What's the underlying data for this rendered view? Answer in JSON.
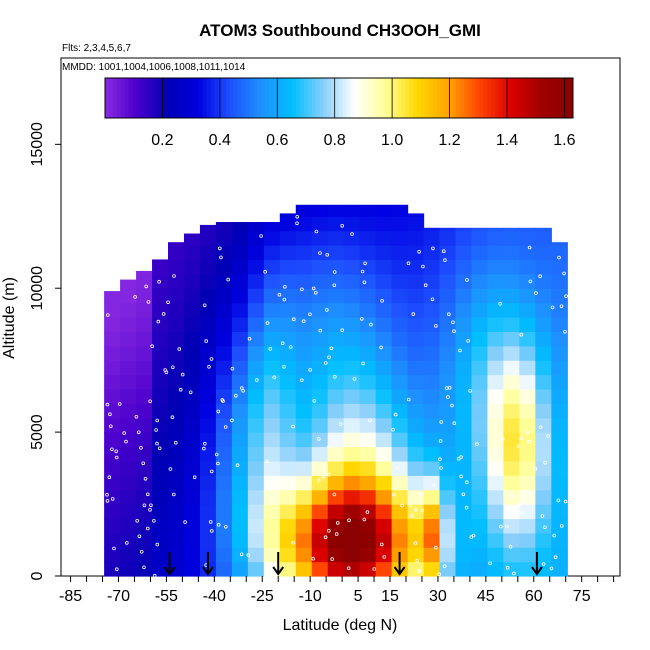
{
  "chart_data": {
    "type": "heatmap",
    "title": "ATOM3 Southbound CH3OOH_GMI",
    "flights_note": "Flts: 2,3,4,5,6,7",
    "dates_note": "MMDD: 1001,1004,1006,1008,1011,1014",
    "xlabel": "Latitude (deg N)",
    "ylabel": "Altitude (m)",
    "xlim": [
      -88,
      87
    ],
    "ylim": [
      0,
      18000
    ],
    "x_ticks": [
      -85,
      -70,
      -55,
      -40,
      -25,
      -10,
      5,
      15,
      30,
      45,
      60,
      75
    ],
    "x_tick_labels": [
      "-85",
      "-70",
      "-55",
      "-40",
      "-25",
      "-10",
      "5",
      "15",
      "30",
      "45",
      "60",
      "75"
    ],
    "y_ticks": [
      0,
      5000,
      10000,
      15000
    ],
    "y_tick_labels": [
      "0",
      "5000",
      "10000",
      "15000"
    ],
    "colorbar": {
      "min": 0.0,
      "max": 1.63,
      "ticks": [
        0.2,
        0.4,
        0.6,
        0.8,
        1.0,
        1.2,
        1.4,
        1.6
      ],
      "tick_labels": [
        "0.2",
        "0.4",
        "0.6",
        "0.8",
        "1.0",
        "1.2",
        "1.4",
        "1.6"
      ],
      "colors": [
        "#8a2be2",
        "#4b00cc",
        "#0000b4",
        "#0000e0",
        "#1e50ff",
        "#1e90ff",
        "#00bfff",
        "#87cefa",
        "#ffffff",
        "#ffff99",
        "#ffd700",
        "#ffa500",
        "#ff4500",
        "#dc0000",
        "#a00000",
        "#8b0000"
      ]
    },
    "profile_latitudes": [
      -72,
      -67,
      -62,
      -57,
      -52,
      -47,
      -42,
      -37,
      -32,
      -27,
      -22,
      -17,
      -12,
      -7,
      -2,
      3,
      8,
      13,
      18,
      23,
      28,
      33,
      38,
      43,
      48,
      53,
      58,
      63,
      68
    ],
    "profile_ceilings_m": [
      9900,
      10300,
      10600,
      11000,
      11600,
      11900,
      12200,
      12300,
      12300,
      12300,
      12300,
      12600,
      12900,
      12900,
      12900,
      12900,
      12900,
      12900,
      12900,
      12600,
      12100,
      12100,
      12100,
      12100,
      12100,
      12100,
      12100,
      12100,
      11600
    ],
    "descent_arrows_lat": [
      -54,
      -42,
      -20,
      18,
      61
    ],
    "annotations": [
      "Flts: 2,3,4,5,6,7",
      "MMDD: 1001,1004,1006,1008,1011,1014"
    ]
  }
}
